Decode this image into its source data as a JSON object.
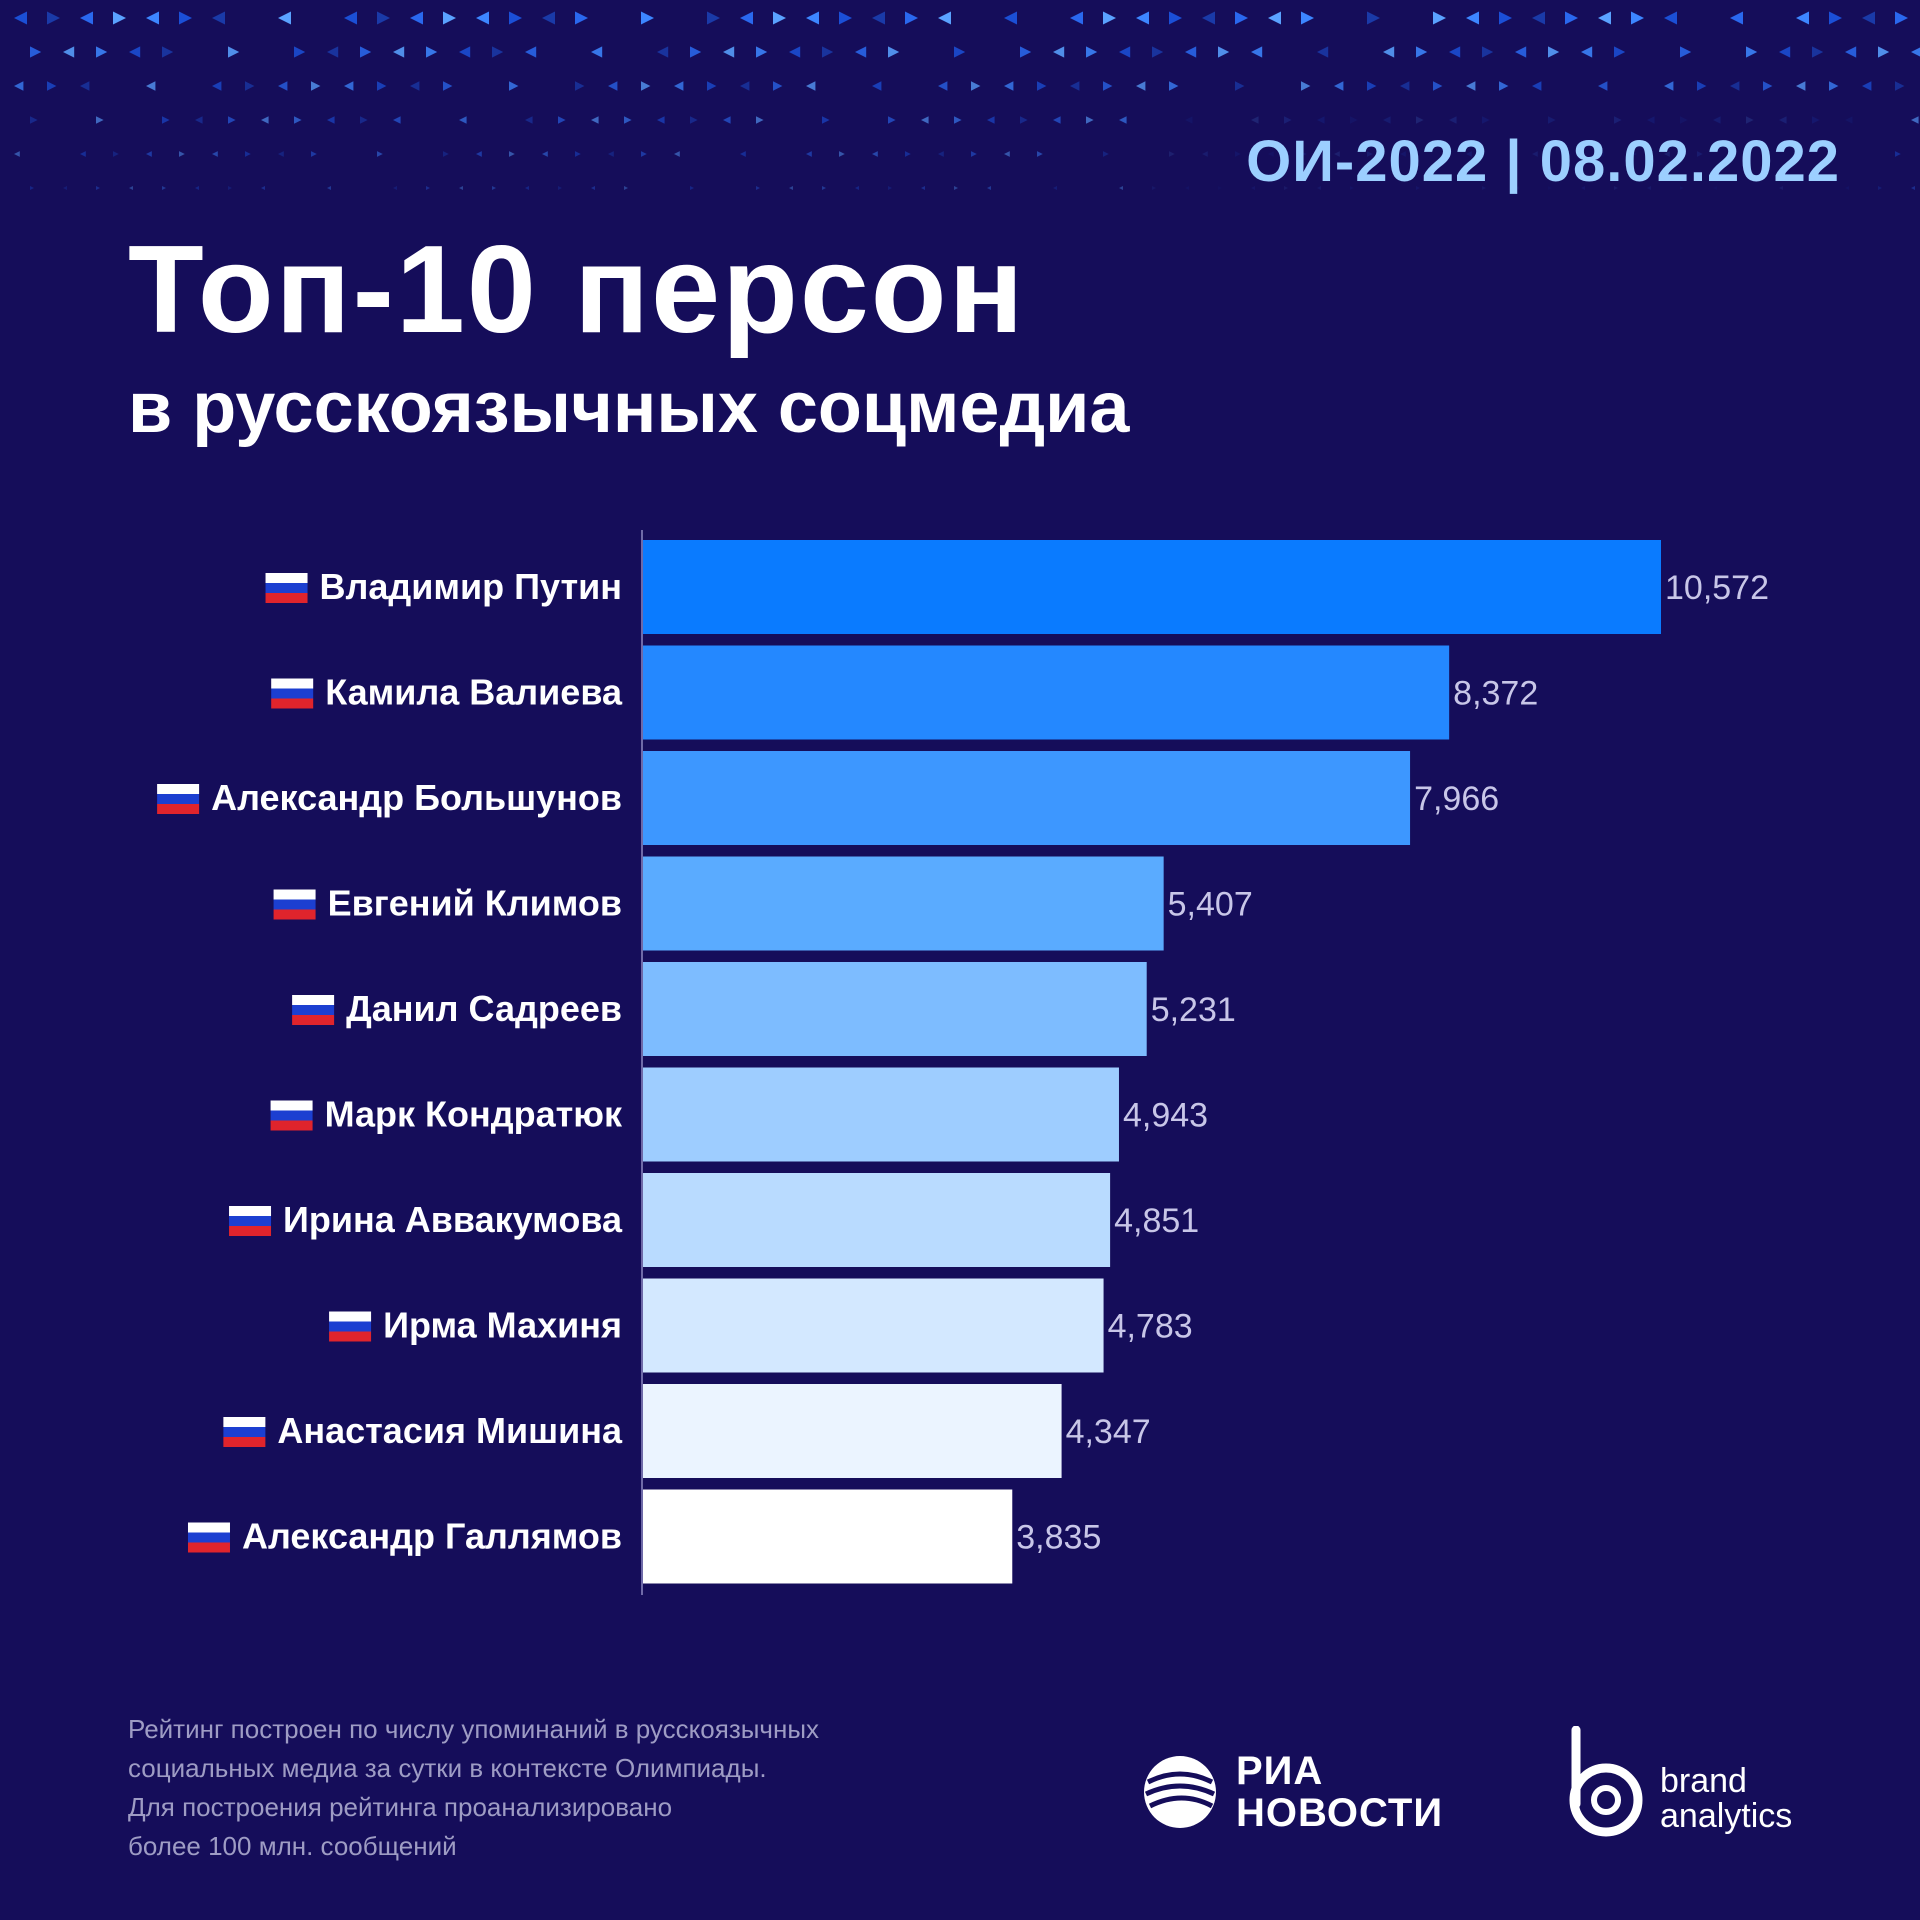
{
  "header": {
    "date_line": "ОИ-2022 | 08.02.2022",
    "title": "Топ-10 персон",
    "subtitle": "в русскоязычных соцмедиа"
  },
  "chart_data": {
    "type": "bar",
    "orientation": "horizontal",
    "title": "Топ-10 персон",
    "subtitle": "в русскоязычных соцмедиа",
    "categories": [
      "Владимир Путин",
      "Камила Валиева",
      "Александр Большунов",
      "Евгений Климов",
      "Данил Садреев",
      "Марк Кондратюк",
      "Ирина Аввакумова",
      "Ирма Махиня",
      "Анастасия Мишина",
      "Александр Галлямов"
    ],
    "values": [
      10572,
      8372,
      7966,
      5407,
      5231,
      4943,
      4851,
      4783,
      4347,
      3835
    ],
    "value_labels": [
      "10,572",
      "8,372",
      "7,966",
      "5,407",
      "5,231",
      "4,943",
      "4,851",
      "4,783",
      "4,347",
      "3,835"
    ],
    "bar_colors": [
      "#0a7bff",
      "#2488ff",
      "#3d97ff",
      "#5aabff",
      "#7dbcff",
      "#9ecdff",
      "#b9dbff",
      "#d3e8ff",
      "#ebf4ff",
      "#ffffff"
    ],
    "flag_icon": "russia-flag-icon",
    "xlim": [
      0,
      10572
    ],
    "grid": false,
    "legend": "none"
  },
  "footnote": {
    "lines": [
      "Рейтинг построен по числу упоминаний в русскоязычных",
      "социальных медиа за сутки в контексте Олимпиады.",
      "Для построения рейтинга проанализировано",
      "более 100 млн. сообщений"
    ]
  },
  "logos": {
    "ria_line1": "РИА",
    "ria_line2": "НОВОСТИ",
    "ba_line1": "brand",
    "ba_line2": "analytics"
  },
  "colors": {
    "background": "#150d5a",
    "accent": "#9ccfff"
  }
}
